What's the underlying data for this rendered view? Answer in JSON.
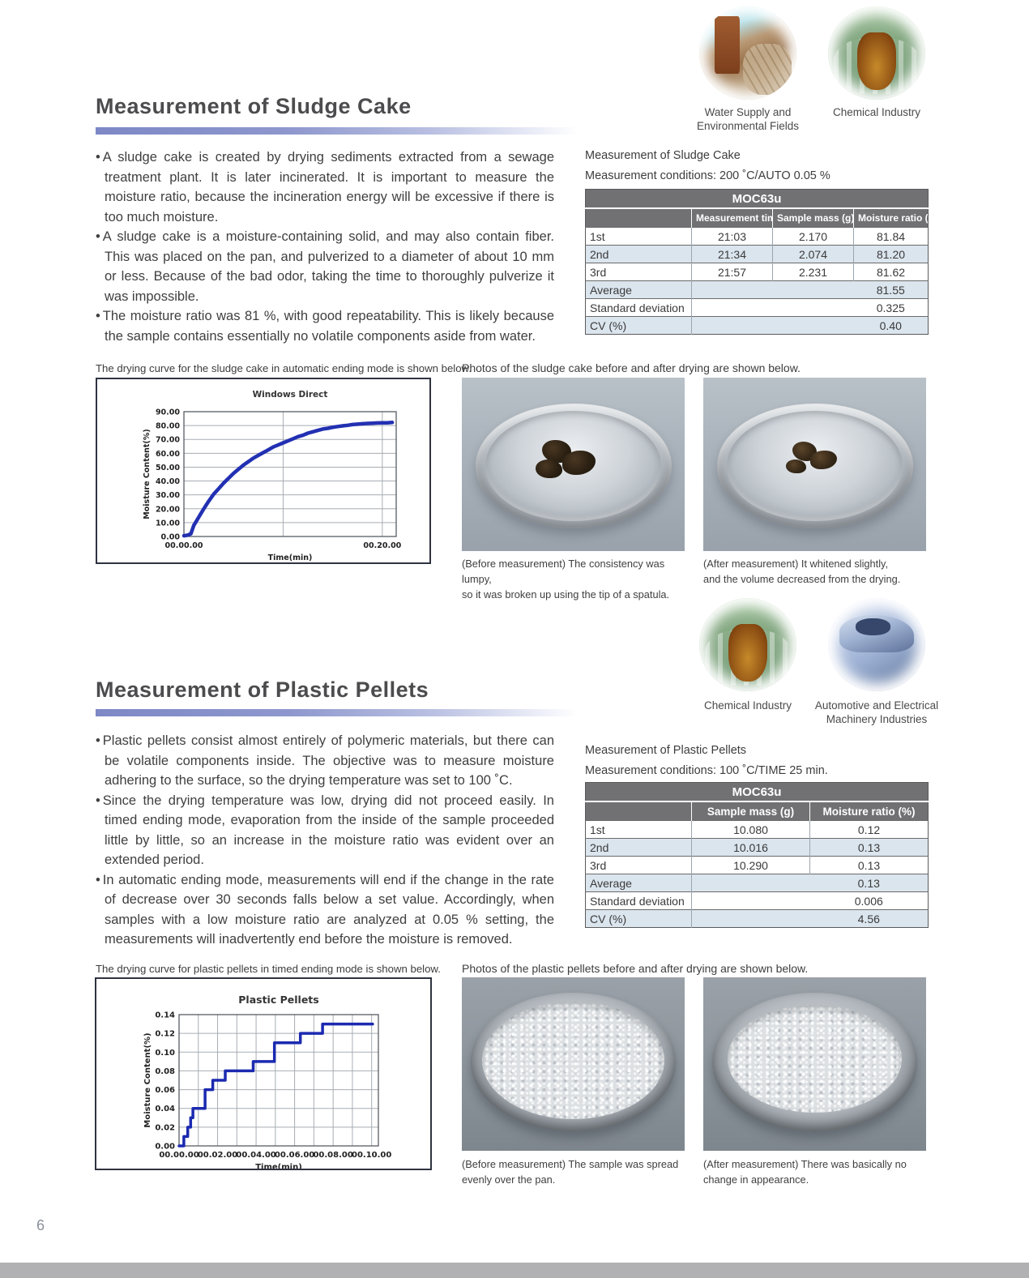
{
  "page_number": "6",
  "industries": {
    "top": [
      {
        "name": "water-supply",
        "label_lines": [
          "Water Supply and",
          "Environmental Fields"
        ]
      },
      {
        "name": "chemical",
        "label_lines": [
          "Chemical Industry"
        ]
      }
    ],
    "mid": [
      {
        "name": "chemical",
        "label_lines": [
          "Chemical Industry"
        ]
      },
      {
        "name": "automotive",
        "label_lines": [
          "Automotive and Electrical",
          "Machinery Industries"
        ]
      }
    ]
  },
  "section1": {
    "title": "Measurement of Sludge Cake",
    "bullets": [
      "A sludge cake is created by drying sediments extracted from a sewage treatment plant. It is later incinerated. It is important to measure the moisture ratio, because the incineration energy will be excessive if there is too much moisture.",
      "A sludge cake is a moisture-containing solid, and may also contain fiber. This was placed on the pan, and pulverized to a diameter of about 10 mm or less. Because of the bad odor, taking the time to thoroughly pulverize it was impossible.",
      "The moisture ratio was 81 %, with good repeatability. This is likely because the sample contains essentially no volatile components aside from water."
    ],
    "table_intro_line1": "Measurement of Sludge Cake",
    "table_intro_line2": "Measurement conditions: 200 ˚C/AUTO 0.05 %",
    "table": {
      "header": "MOC63u",
      "columns": [
        "",
        "Measurement time",
        "Sample mass (g)",
        "Moisture ratio (%)"
      ],
      "rows": [
        [
          "1st",
          "21:03",
          "2.170",
          "81.84"
        ],
        [
          "2nd",
          "21:34",
          "2.074",
          "81.20"
        ],
        [
          "3rd",
          "21:57",
          "2.231",
          "81.62"
        ]
      ],
      "summary_rows": [
        [
          "Average",
          "81.55"
        ],
        [
          "Standard deviation",
          "0.325"
        ],
        [
          "CV (%)",
          "0.40"
        ]
      ]
    },
    "chart_caption": "The drying curve for the sludge cake in automatic ending mode is shown below.",
    "photos_caption": "Photos of the sludge cake before and after drying are shown below.",
    "photo_captions": [
      [
        "(Before measurement) The consistency was lumpy,",
        "so it was broken up using the tip of a spatula."
      ],
      [
        "(After measurement) It whitened slightly,",
        "and the volume decreased from the drying."
      ]
    ]
  },
  "section2": {
    "title": "Measurement of Plastic Pellets",
    "bullets": [
      "Plastic pellets consist almost entirely of polymeric materials, but there can be volatile components inside. The objective was to measure moisture adhering to the surface, so the drying temperature was set to 100 ˚C.",
      "Since the drying temperature was low, drying did not proceed easily. In timed ending mode, evaporation from the inside of the sample proceeded little by little, so an increase in the moisture ratio was evident over an extended period.",
      "In automatic ending mode, measurements will end if the change in the rate of decrease over 30 seconds falls below a set value. Accordingly, when samples with a low moisture ratio are analyzed at 0.05 % setting, the measurements will inadvertently end before the moisture is removed."
    ],
    "table_intro_line1": "Measurement of Plastic Pellets",
    "table_intro_line2": "Measurement conditions: 100 ˚C/TIME 25 min.",
    "table": {
      "header": "MOC63u",
      "columns": [
        "",
        "Sample mass (g)",
        "Moisture ratio (%)"
      ],
      "rows": [
        [
          "1st",
          "10.080",
          "0.12"
        ],
        [
          "2nd",
          "10.016",
          "0.13"
        ],
        [
          "3rd",
          "10.290",
          "0.13"
        ]
      ],
      "summary_rows": [
        [
          "Average",
          "0.13"
        ],
        [
          "Standard deviation",
          "0.006"
        ],
        [
          "CV (%)",
          "4.56"
        ]
      ]
    },
    "chart_caption": "The drying curve for plastic pellets in timed ending mode is shown below.",
    "photos_caption": "Photos of the plastic pellets before and after drying are shown below.",
    "photo_captions": [
      [
        "(Before measurement) The sample was spread",
        "evenly over the pan."
      ],
      [
        "(After measurement) There was basically no",
        "change in appearance."
      ]
    ]
  },
  "chart_data": [
    {
      "type": "line",
      "title": "Windows Direct",
      "xlabel": "Time(min)",
      "ylabel": "Moisture Content(%)",
      "xlim": [
        0,
        21.4
      ],
      "ylim": [
        0,
        90
      ],
      "grid": true,
      "y_ticks": [
        {
          "v": 0,
          "label": "0.00"
        },
        {
          "v": 10,
          "label": "10.00"
        },
        {
          "v": 20,
          "label": "20.00"
        },
        {
          "v": 30,
          "label": "30.00"
        },
        {
          "v": 40,
          "label": "40.00"
        },
        {
          "v": 50,
          "label": "50.00"
        },
        {
          "v": 60,
          "label": "60.00"
        },
        {
          "v": 70,
          "label": "70.00"
        },
        {
          "v": 80,
          "label": "80.00"
        },
        {
          "v": 90,
          "label": "90.00"
        }
      ],
      "x_ticks": [
        {
          "v": 0,
          "label": "00.00.00"
        },
        {
          "v": 20,
          "label": "00.20.00"
        }
      ],
      "x_gridlines": [
        10,
        20
      ],
      "series": [
        {
          "name": "moisture-content",
          "color": "#2230b2",
          "width": 4.5,
          "points": [
            [
              0,
              0.5
            ],
            [
              0.4,
              1
            ],
            [
              0.7,
              2
            ],
            [
              1,
              8
            ],
            [
              1.5,
              14
            ],
            [
              2,
              20
            ],
            [
              2.5,
              25.5
            ],
            [
              3,
              30.5
            ],
            [
              3.5,
              34.5
            ],
            [
              4,
              38.5
            ],
            [
              4.5,
              42
            ],
            [
              5,
              45.5
            ],
            [
              5.5,
              48.5
            ],
            [
              6,
              51.5
            ],
            [
              6.5,
              54
            ],
            [
              7,
              56.5
            ],
            [
              7.5,
              58.5
            ],
            [
              8,
              60.5
            ],
            [
              8.5,
              62.5
            ],
            [
              9,
              64.5
            ],
            [
              9.5,
              66
            ],
            [
              10,
              67.5
            ],
            [
              10.5,
              69
            ],
            [
              11,
              70.5
            ],
            [
              11.5,
              72
            ],
            [
              12,
              73
            ],
            [
              12.5,
              74.5
            ],
            [
              13,
              75.5
            ],
            [
              13.5,
              76.5
            ],
            [
              14,
              77.5
            ],
            [
              14.5,
              78
            ],
            [
              15,
              78.7
            ],
            [
              15.5,
              79.3
            ],
            [
              16,
              79.8
            ],
            [
              16.5,
              80.2
            ],
            [
              17,
              80.7
            ],
            [
              17.5,
              81
            ],
            [
              18,
              81.3
            ],
            [
              18.5,
              81.5
            ],
            [
              19,
              81.7
            ],
            [
              19.5,
              81.9
            ],
            [
              20,
              82
            ],
            [
              20.5,
              82
            ],
            [
              21,
              82.2
            ]
          ]
        }
      ]
    },
    {
      "type": "line",
      "title": "Plastic Pellets",
      "xlabel": "Time(min)",
      "ylabel": "Moisture Content(%)",
      "xlim": [
        0,
        10.35
      ],
      "ylim": [
        0,
        0.14
      ],
      "grid": true,
      "y_ticks": [
        {
          "v": 0,
          "label": "0.00"
        },
        {
          "v": 0.02,
          "label": "0.02"
        },
        {
          "v": 0.04,
          "label": "0.04"
        },
        {
          "v": 0.06,
          "label": "0.06"
        },
        {
          "v": 0.08,
          "label": "0.08"
        },
        {
          "v": 0.1,
          "label": "0.10"
        },
        {
          "v": 0.12,
          "label": "0.12"
        },
        {
          "v": 0.14,
          "label": "0.14"
        }
      ],
      "x_ticks": [
        {
          "v": 0,
          "label": "00.00.00"
        },
        {
          "v": 2,
          "label": "00.02.00"
        },
        {
          "v": 4,
          "label": "00.04.00"
        },
        {
          "v": 6,
          "label": "00.06.00"
        },
        {
          "v": 8,
          "label": "00.08.00"
        },
        {
          "v": 10,
          "label": "00.10.00"
        }
      ],
      "x_gridlines": [
        1,
        2,
        3,
        4,
        5,
        6,
        7,
        8,
        9,
        10
      ],
      "series": [
        {
          "name": "moisture-content",
          "color": "#1b2ab0",
          "width": 3.5,
          "points": [
            [
              0,
              0
            ],
            [
              0.25,
              0
            ],
            [
              0.25,
              0.01
            ],
            [
              0.45,
              0.01
            ],
            [
              0.45,
              0.02
            ],
            [
              0.6,
              0.02
            ],
            [
              0.6,
              0.03
            ],
            [
              0.72,
              0.03
            ],
            [
              0.72,
              0.04
            ],
            [
              1.35,
              0.04
            ],
            [
              1.35,
              0.06
            ],
            [
              1.75,
              0.06
            ],
            [
              1.75,
              0.07
            ],
            [
              2.4,
              0.07
            ],
            [
              2.4,
              0.08
            ],
            [
              3.85,
              0.08
            ],
            [
              3.85,
              0.09
            ],
            [
              4.95,
              0.09
            ],
            [
              4.95,
              0.11
            ],
            [
              6.3,
              0.11
            ],
            [
              6.3,
              0.12
            ],
            [
              7.45,
              0.12
            ],
            [
              7.45,
              0.13
            ],
            [
              10.05,
              0.13
            ]
          ]
        }
      ]
    }
  ]
}
